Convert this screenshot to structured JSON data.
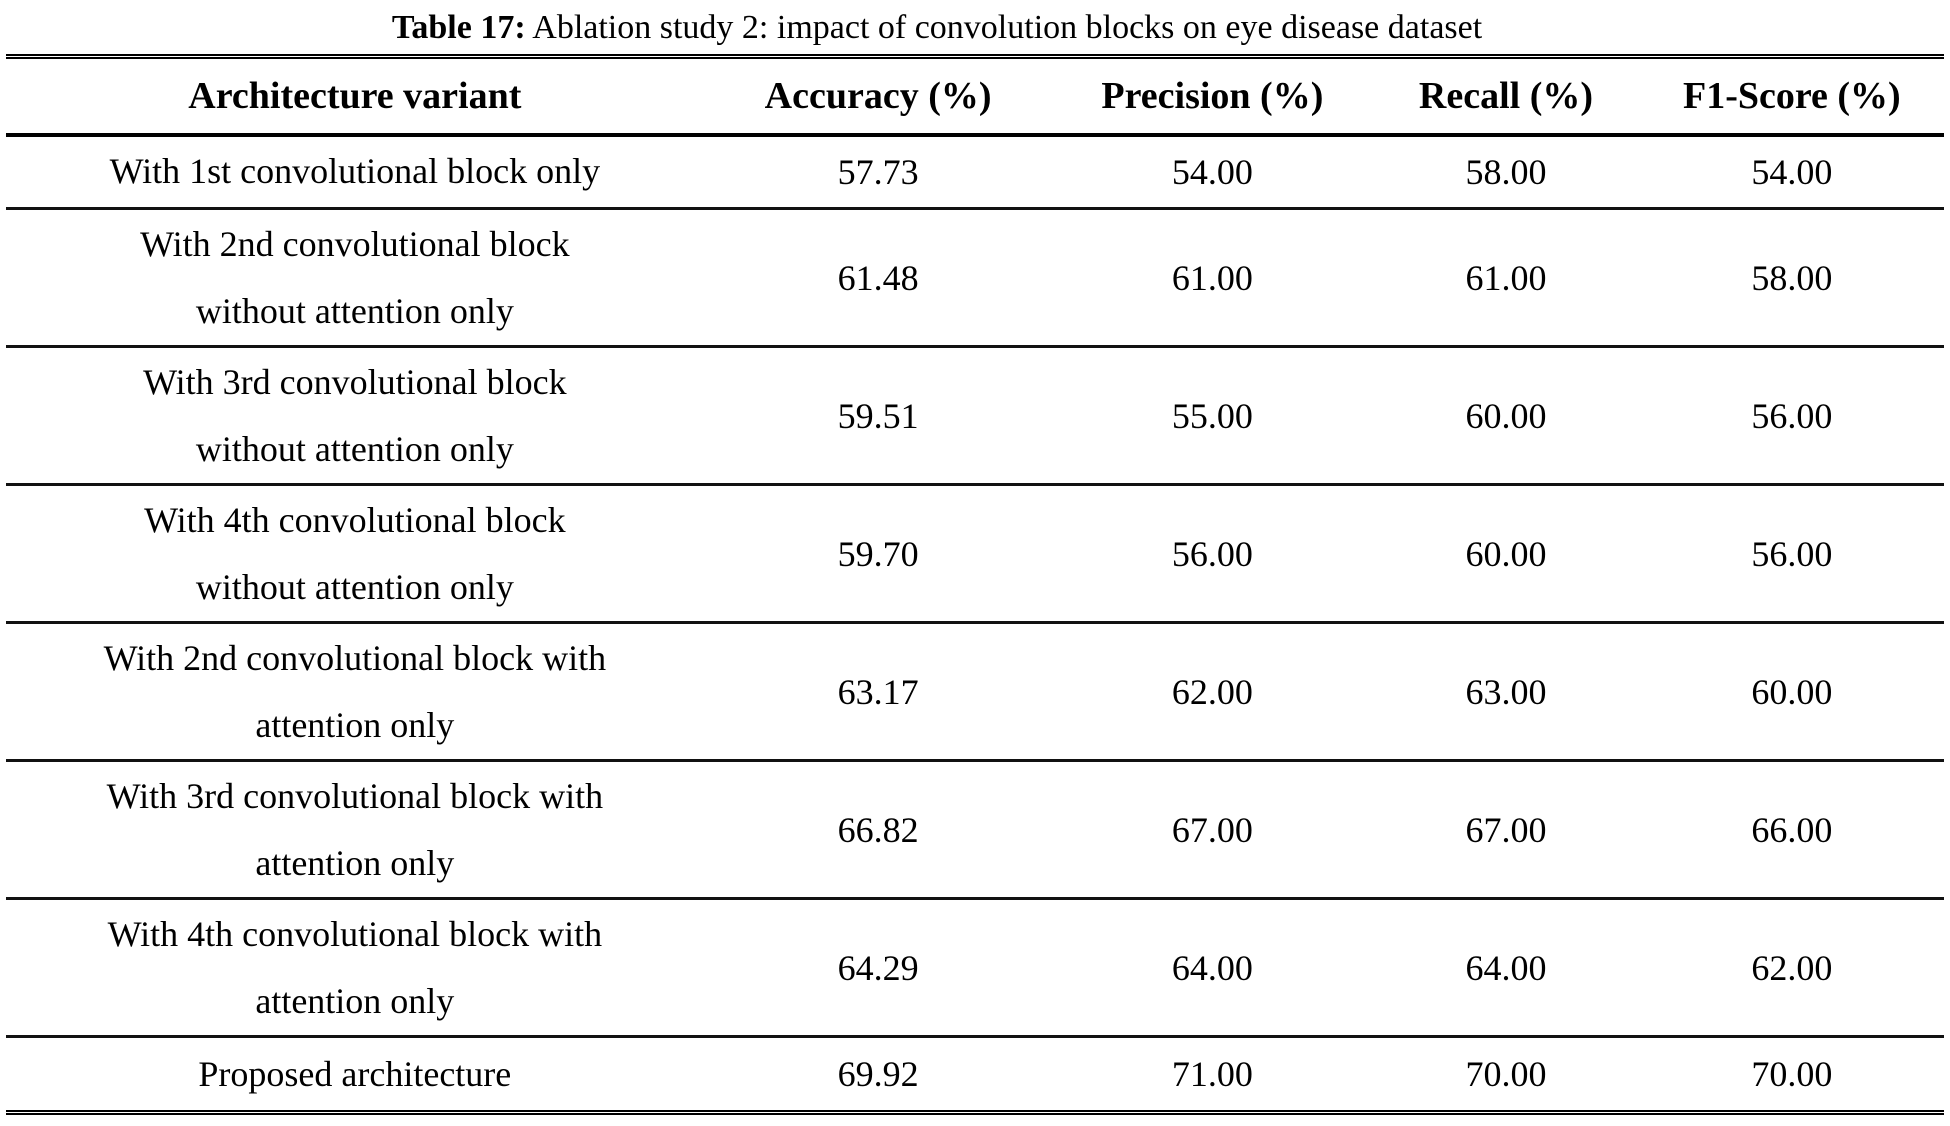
{
  "caption": {
    "label": "Table 17:",
    "text": " Ablation study 2: impact of convolution blocks on eye disease dataset"
  },
  "table": {
    "columns": [
      "Architecture variant",
      "Accuracy (%)",
      "Precision (%)",
      "Recall (%)",
      "F1-Score (%)"
    ],
    "rows": [
      {
        "variant": "With 1st convolutional block only",
        "accuracy": "57.73",
        "precision": "54.00",
        "recall": "58.00",
        "f1": "54.00"
      },
      {
        "variant": "With 2nd convolutional block\nwithout attention only",
        "accuracy": "61.48",
        "precision": "61.00",
        "recall": "61.00",
        "f1": "58.00"
      },
      {
        "variant": "With 3rd convolutional block\nwithout attention only",
        "accuracy": "59.51",
        "precision": "55.00",
        "recall": "60.00",
        "f1": "56.00"
      },
      {
        "variant": "With 4th convolutional block\nwithout attention only",
        "accuracy": "59.70",
        "precision": "56.00",
        "recall": "60.00",
        "f1": "56.00"
      },
      {
        "variant": "With 2nd convolutional block with\nattention only",
        "accuracy": "63.17",
        "precision": "62.00",
        "recall": "63.00",
        "f1": "60.00"
      },
      {
        "variant": "With 3rd convolutional block with\nattention only",
        "accuracy": "66.82",
        "precision": "67.00",
        "recall": "67.00",
        "f1": "66.00"
      },
      {
        "variant": "With 4th convolutional block with\nattention only",
        "accuracy": "64.29",
        "precision": "64.00",
        "recall": "64.00",
        "f1": "62.00"
      },
      {
        "variant": "Proposed architecture",
        "accuracy": "69.92",
        "precision": "71.00",
        "recall": "70.00",
        "f1": "70.00"
      }
    ]
  },
  "colors": {
    "text": "#000000",
    "rule": "#000000",
    "background": "#ffffff"
  }
}
